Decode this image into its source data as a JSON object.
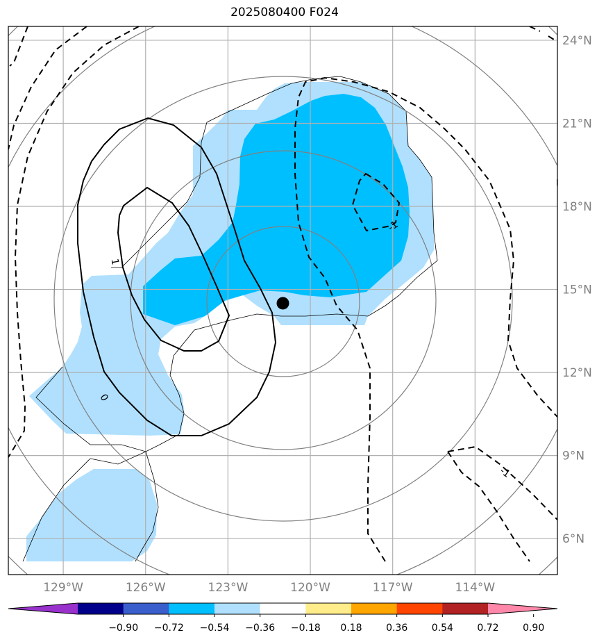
{
  "title": "2025080400 F024",
  "map": {
    "lat_labels": [
      "24°N",
      "21°N",
      "18°N",
      "15°N",
      "12°N",
      "9°N",
      "6°N"
    ],
    "lon_labels": [
      "129°W",
      "126°W",
      "123°W",
      "120°W",
      "117°W",
      "114°W"
    ],
    "lat_range": [
      4.7,
      24.5
    ],
    "lon_range": [
      -131.0,
      -111.0
    ],
    "grid": true,
    "storm_center": {
      "lon": -121.0,
      "lat": 14.5
    },
    "contour_labels": [
      {
        "text": "1",
        "lon": -127.1,
        "lat": 16.0,
        "rot": 80
      },
      {
        "text": "0",
        "lon": -127.5,
        "lat": 11.1,
        "rot": 60
      },
      {
        "text": "-1",
        "lon": -117.0,
        "lat": 17.3,
        "rot": -35
      },
      {
        "text": "-1",
        "lon": -112.9,
        "lat": 8.4,
        "rot": 35
      }
    ]
  },
  "colorbar": {
    "labels": [
      "−0.90",
      "−0.72",
      "−0.54",
      "−0.36",
      "−0.18",
      "0.18",
      "0.36",
      "0.54",
      "0.72",
      "0.90"
    ],
    "colors": [
      "#9932cc",
      "#00008b",
      "#3a5fcd",
      "#00bfff",
      "#b0e0fe",
      "#ffffff",
      "#ffec8b",
      "#ffa500",
      "#ff4500",
      "#b22222",
      "#ff88aa"
    ],
    "extend": "both"
  },
  "colors": {
    "fill_light": "#b0e0fe",
    "fill_mid": "#00bfff",
    "grid": "#b0b0b0",
    "range_rings": "#808080"
  }
}
